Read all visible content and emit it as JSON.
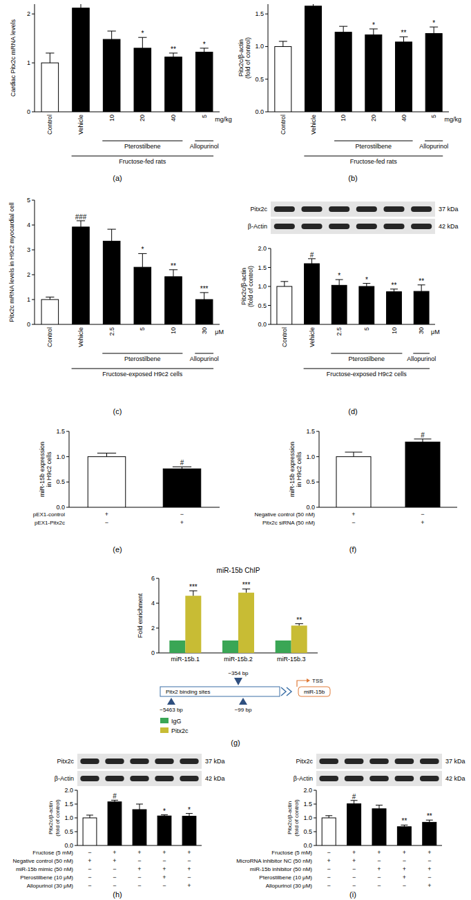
{
  "chart_data": [
    {
      "panel": "(a)",
      "type": "bar",
      "y_label": "Cardiac Pitx2c mRNA levels",
      "categories": [
        "Control",
        "Vehicle",
        "10",
        "20",
        "40",
        "5"
      ],
      "category_groups": [
        null,
        null,
        "Pterostilbene",
        "Pterostilbene",
        "Pterostilbene",
        "Allopurinol"
      ],
      "unit_label": "mg/kg",
      "x_label": "Fructose-fed rats",
      "values": [
        1.0,
        2.12,
        1.48,
        1.3,
        1.12,
        1.22
      ],
      "errors": [
        0.2,
        0.28,
        0.17,
        0.22,
        0.08,
        0.08
      ],
      "significance": [
        null,
        null,
        null,
        "*",
        "**",
        "*"
      ],
      "colors": [
        "#ffffff",
        "#000000",
        "#000000",
        "#000000",
        "#000000",
        "#000000"
      ],
      "ylim": [
        0,
        2.2
      ],
      "yticks": [
        0,
        1,
        2
      ]
    },
    {
      "panel": "(b)",
      "type": "bar",
      "y_label": [
        "Pitx2c/β-actin",
        "(fold of control)"
      ],
      "categories": [
        "Control",
        "Vehicle",
        "10",
        "20",
        "40",
        "5"
      ],
      "category_groups": [
        null,
        null,
        "Pterostilbene",
        "Pterostilbene",
        "Pterostilbene",
        "Allopurinol"
      ],
      "unit_label": "mg/kg",
      "x_label": "Fructose-fed rats",
      "values": [
        1.0,
        1.62,
        1.22,
        1.18,
        1.07,
        1.2
      ],
      "errors": [
        0.08,
        0.05,
        0.09,
        0.09,
        0.08,
        0.1
      ],
      "significance": [
        null,
        null,
        null,
        "*",
        "**",
        "*"
      ],
      "colors": [
        "#ffffff",
        "#000000",
        "#000000",
        "#000000",
        "#000000",
        "#000000"
      ],
      "ylim": [
        0,
        1.65
      ],
      "yticks": [
        {
          "value": 0,
          "label": "0.0"
        },
        {
          "value": 0.5,
          "label": "0.5"
        },
        {
          "value": 1,
          "label": "1.0"
        },
        {
          "value": 1.5,
          "label": "1.5"
        }
      ]
    },
    {
      "panel": "(c)",
      "type": "bar",
      "y_label": "Pitx2c mRNA levels in H9c2 myocardial cell",
      "categories": [
        "Control",
        "Vehicle",
        "2.5",
        "5",
        "10",
        "30"
      ],
      "category_groups": [
        null,
        null,
        "Pterostilbene",
        "Pterostilbene",
        "Pterostilbene",
        "Allopurinol"
      ],
      "unit_label": "μM",
      "x_label": "Fructose-exposed H9c2 cells",
      "values": [
        1.0,
        3.92,
        3.35,
        2.3,
        1.92,
        1.0
      ],
      "errors": [
        0.1,
        0.25,
        0.48,
        0.55,
        0.28,
        0.28
      ],
      "significance": [
        null,
        "###",
        null,
        "*",
        "**",
        "***"
      ],
      "colors": [
        "#ffffff",
        "#000000",
        "#000000",
        "#000000",
        "#000000",
        "#000000"
      ],
      "ylim": [
        0,
        5
      ],
      "yticks": [
        0,
        1,
        2,
        3,
        4,
        5
      ]
    },
    {
      "panel": "(d)",
      "type": "bar",
      "y_label": [
        "Pitx2c/β-actin",
        "(fold of control)"
      ],
      "blot": {
        "bands": [
          "Pitx2c",
          "β-Actin"
        ],
        "sizes": [
          "37 kDa",
          "42 kDa"
        ]
      },
      "categories": [
        "Control",
        "Vehicle",
        "2.5",
        "5",
        "10",
        "30"
      ],
      "category_groups": [
        null,
        null,
        "Pterostilbene",
        "Pterostilbene",
        "Pterostilbene",
        "Allopurinol"
      ],
      "unit_label": "μM",
      "x_label": "Fructose-exposed H9c2 cells",
      "values": [
        1.0,
        1.6,
        1.03,
        1.0,
        0.86,
        0.87
      ],
      "errors": [
        0.13,
        0.13,
        0.15,
        0.08,
        0.07,
        0.17
      ],
      "significance": [
        null,
        "#",
        "*",
        "*",
        "**",
        "**"
      ],
      "colors": [
        "#ffffff",
        "#000000",
        "#000000",
        "#000000",
        "#000000",
        "#000000"
      ],
      "ylim": [
        0,
        2
      ],
      "yticks": [
        {
          "value": 0,
          "label": "0.0"
        },
        {
          "value": 0.5,
          "label": "0.5"
        },
        {
          "value": 1,
          "label": "1.0"
        },
        {
          "value": 1.5,
          "label": "1.5"
        },
        {
          "value": 2,
          "label": "2.0"
        }
      ]
    },
    {
      "panel": "(e)",
      "type": "bar",
      "y_label": [
        "miR-15b expression",
        "in H9c2 cells"
      ],
      "values": [
        1.0,
        0.76
      ],
      "errors": [
        0.07,
        0.04
      ],
      "significance": [
        null,
        "#"
      ],
      "colors": [
        "#ffffff",
        "#000000"
      ],
      "conditions": [
        {
          "label": "pEX1-control",
          "signs": [
            "+",
            "−"
          ]
        },
        {
          "label": "pEX1-Pitx2c",
          "signs": [
            "−",
            "+"
          ]
        }
      ],
      "ylim": [
        0,
        1.5
      ],
      "yticks": [
        {
          "value": 0,
          "label": "0.0"
        },
        {
          "value": 0.5,
          "label": "0.5"
        },
        {
          "value": 1,
          "label": "1.0"
        },
        {
          "value": 1.5,
          "label": "1.5"
        }
      ]
    },
    {
      "panel": "(f)",
      "type": "bar",
      "y_label": [
        "miR-15b expression",
        "in H9c2 cells"
      ],
      "values": [
        1.0,
        1.29
      ],
      "errors": [
        0.09,
        0.06
      ],
      "significance": [
        null,
        "#"
      ],
      "colors": [
        "#ffffff",
        "#000000"
      ],
      "conditions": [
        {
          "label": "Negative control (50 nM)",
          "signs": [
            "+",
            "−"
          ]
        },
        {
          "label": "Pitx2c siRNA (50 nM)",
          "signs": [
            "−",
            "+"
          ]
        }
      ],
      "ylim": [
        0,
        1.5
      ],
      "yticks": [
        {
          "value": 0,
          "label": "0.0"
        },
        {
          "value": 0.5,
          "label": "0.5"
        },
        {
          "value": 1,
          "label": "1.0"
        },
        {
          "value": 1.5,
          "label": "1.5"
        }
      ]
    },
    {
      "panel": "(g)",
      "type": "bar",
      "title": "miR-15b ChIP",
      "y_label": "Fold enrichment",
      "categories": [
        "miR-15b.1",
        "miR-15b.2",
        "miR-15b.3"
      ],
      "series": [
        {
          "name": "IgG",
          "color": "#3aa655",
          "values": [
            1,
            1,
            1
          ]
        },
        {
          "name": "Pitx2c",
          "color": "#c8bc34",
          "values": [
            4.6,
            4.85,
            2.2
          ],
          "errors": [
            0.4,
            0.3,
            0.15
          ],
          "significance": [
            "***",
            "***",
            "**"
          ]
        }
      ],
      "legend": "bottom",
      "diagram": {
        "box_label": "Pitx2 binding sites",
        "sites": [
          "−354 bp",
          "−5463 bp",
          "−99 bp"
        ],
        "tss": "TSS",
        "gene": "miR-15b"
      },
      "ylim": [
        0,
        6
      ],
      "yticks": [
        0,
        2,
        4,
        6
      ]
    },
    {
      "panel": "(h)",
      "type": "bar",
      "y_label": [
        "Pitx2c/β-actin",
        "(fold of control)"
      ],
      "blot": {
        "bands": [
          "Pitx2c",
          "β-Actin"
        ],
        "sizes": [
          "37 kDa",
          "42 kDa"
        ]
      },
      "values": [
        1.0,
        1.58,
        1.3,
        1.07,
        1.06
      ],
      "errors": [
        0.1,
        0.06,
        0.2,
        0.04,
        0.1
      ],
      "significance": [
        null,
        "#",
        null,
        "*",
        "*"
      ],
      "colors": [
        "#ffffff",
        "#000000",
        "#000000",
        "#000000",
        "#000000"
      ],
      "conditions": [
        {
          "label": "Fructose (5 mM)",
          "signs": [
            "−",
            "+",
            "+",
            "+",
            "+"
          ]
        },
        {
          "label": "Negative control (50 nM)",
          "signs": [
            "+",
            "+",
            "−",
            "−",
            "−"
          ]
        },
        {
          "label": "miR-15b mimic (50 nM)",
          "signs": [
            "−",
            "−",
            "+",
            "+",
            "+"
          ]
        },
        {
          "label": "Pterostilbene (10 μM)",
          "signs": [
            "−",
            "−",
            "−",
            "+",
            "−"
          ]
        },
        {
          "label": "Allopurinol (30 μM)",
          "signs": [
            "−",
            "−",
            "−",
            "−",
            "+"
          ]
        }
      ],
      "ylim": [
        0,
        2
      ],
      "yticks": [
        {
          "value": 0,
          "label": "0.0"
        },
        {
          "value": 0.5,
          "label": "0.5"
        },
        {
          "value": 1,
          "label": "1.0"
        },
        {
          "value": 1.5,
          "label": "1.5"
        },
        {
          "value": 2,
          "label": "2.0"
        }
      ]
    },
    {
      "panel": "(i)",
      "type": "bar",
      "y_label": [
        "Pitx2c/β-actin",
        "(fold of control)"
      ],
      "blot": {
        "bands": [
          "Pitx2c",
          "β-Actin"
        ],
        "sizes": [
          "37 kDa",
          "42 kDa"
        ]
      },
      "values": [
        1.0,
        1.51,
        1.33,
        0.68,
        0.84
      ],
      "errors": [
        0.08,
        0.12,
        0.13,
        0.06,
        0.08
      ],
      "significance": [
        null,
        "#",
        null,
        "**",
        "**"
      ],
      "colors": [
        "#ffffff",
        "#000000",
        "#000000",
        "#000000",
        "#000000"
      ],
      "conditions": [
        {
          "label": "Fructose (5 mM)",
          "signs": [
            "−",
            "+",
            "+",
            "+",
            "+"
          ]
        },
        {
          "label": "MicroRNA inhibitor NC (50 nM)",
          "signs": [
            "+",
            "+",
            "−",
            "−",
            "−"
          ]
        },
        {
          "label": "miR-15b inhibitor (50 nM)",
          "signs": [
            "−",
            "−",
            "+",
            "+",
            "+"
          ]
        },
        {
          "label": "Pterostilbene (10 μM)",
          "signs": [
            "−",
            "−",
            "−",
            "+",
            "−"
          ]
        },
        {
          "label": "Allopurinol (30 μM)",
          "signs": [
            "−",
            "−",
            "−",
            "−",
            "+"
          ]
        }
      ],
      "ylim": [
        0,
        2
      ],
      "yticks": [
        {
          "value": 0,
          "label": "0.0"
        },
        {
          "value": 0.5,
          "label": "0.5"
        },
        {
          "value": 1,
          "label": "1.0"
        },
        {
          "value": 1.5,
          "label": "1.5"
        },
        {
          "value": 2,
          "label": "2.0"
        }
      ]
    }
  ]
}
